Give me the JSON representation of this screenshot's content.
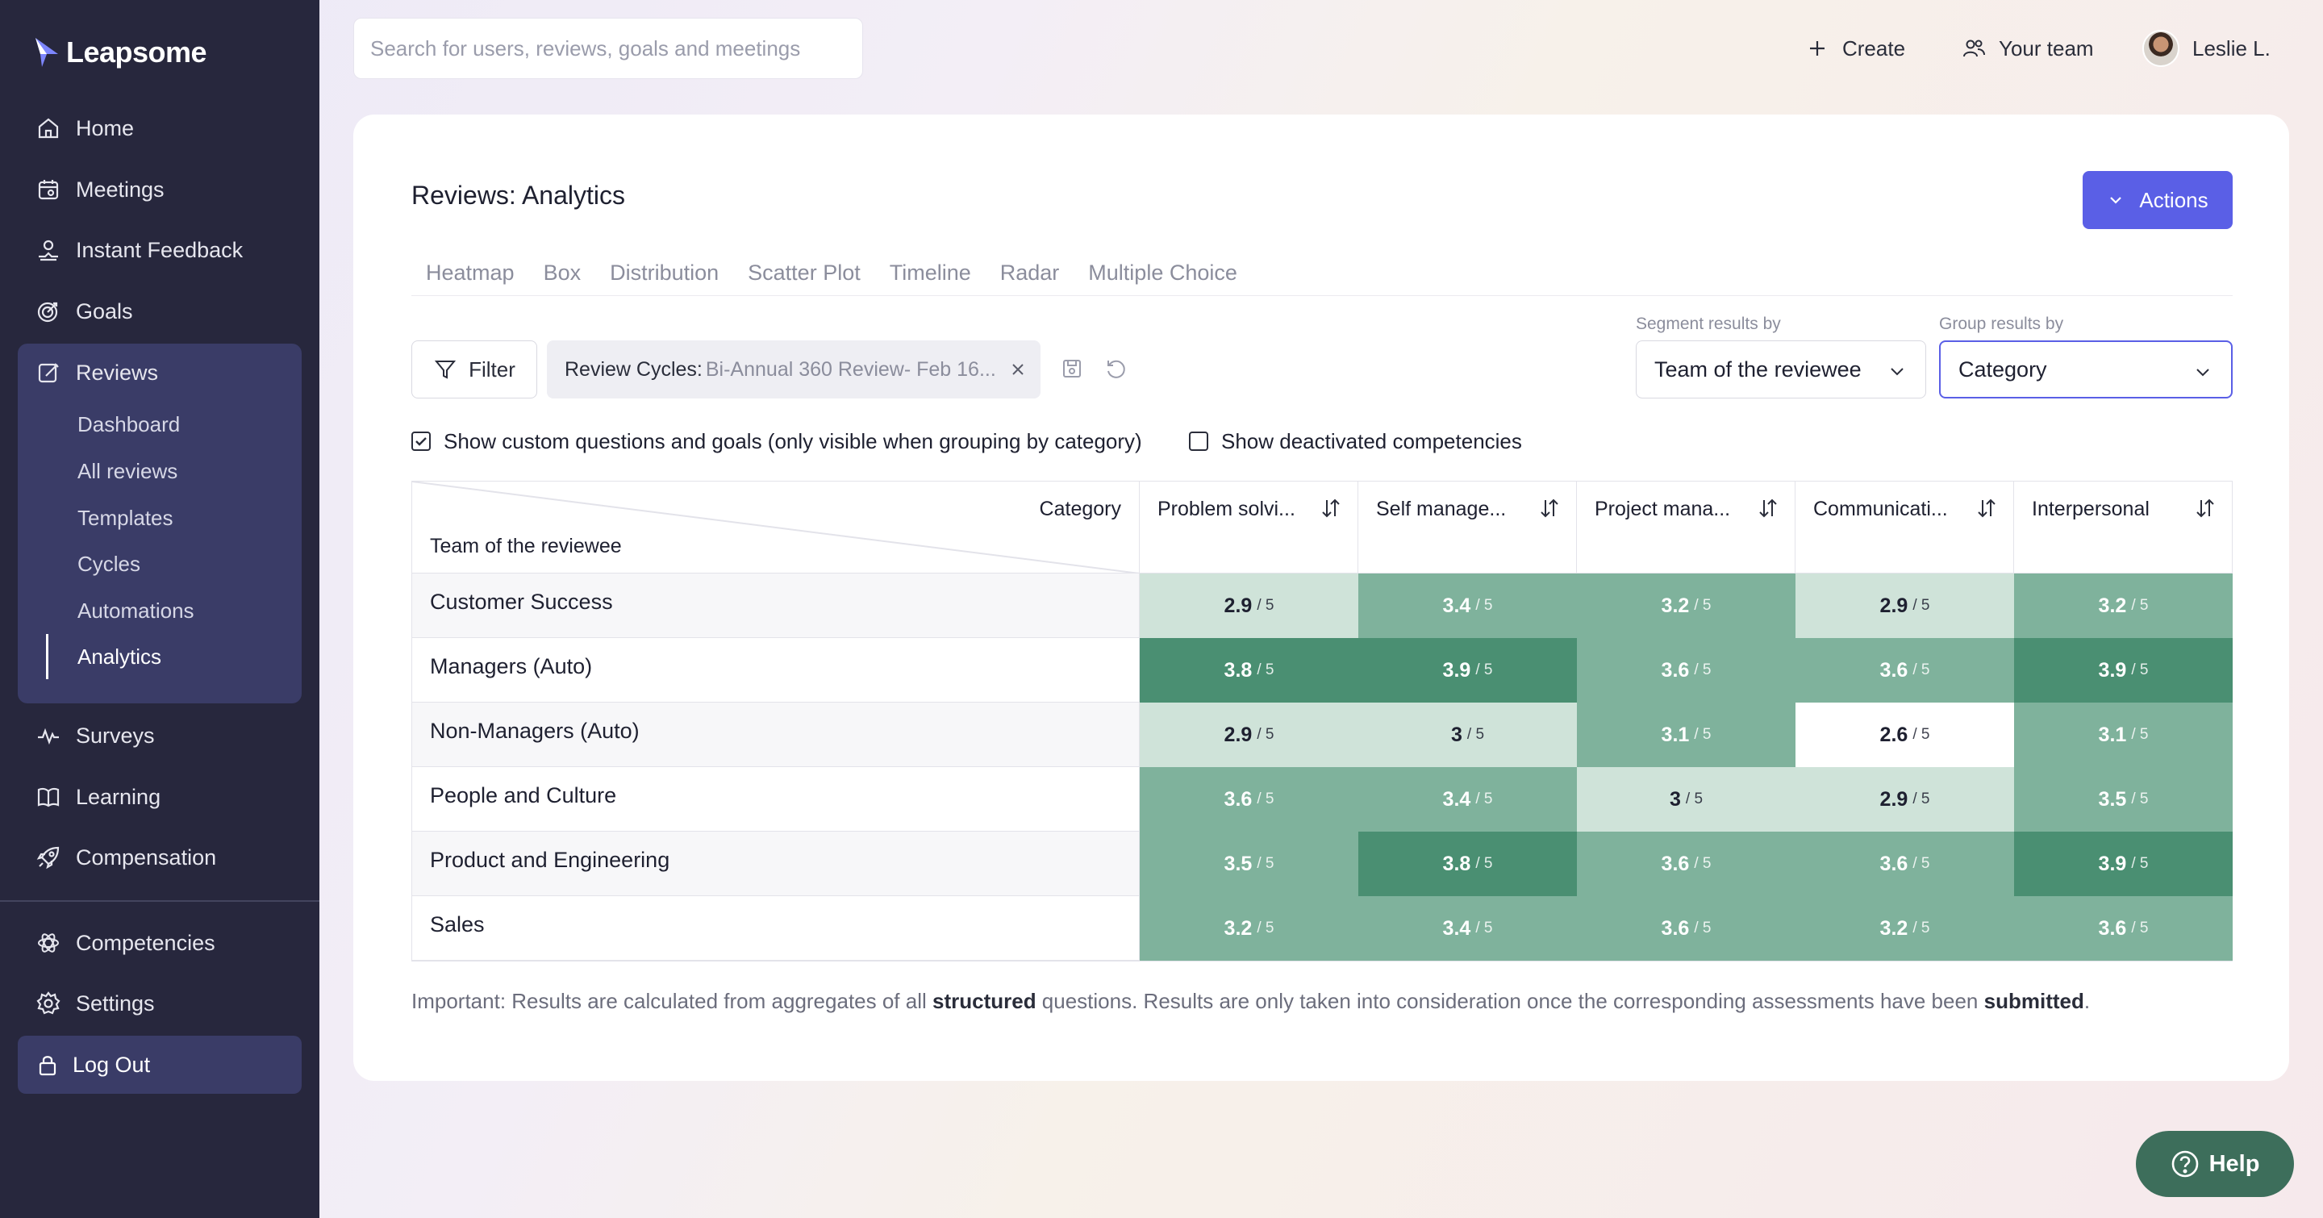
{
  "brand": {
    "name": "Leapsome"
  },
  "sidebar": {
    "items": [
      {
        "label": "Home",
        "icon": "home-icon"
      },
      {
        "label": "Meetings",
        "icon": "calendar-icon"
      },
      {
        "label": "Instant Feedback",
        "icon": "feedback-icon"
      },
      {
        "label": "Goals",
        "icon": "target-icon"
      },
      {
        "label": "Reviews",
        "icon": "edit-icon"
      },
      {
        "label": "Surveys",
        "icon": "pulse-icon"
      },
      {
        "label": "Learning",
        "icon": "book-icon"
      },
      {
        "label": "Compensation",
        "icon": "rocket-icon"
      },
      {
        "label": "Competencies",
        "icon": "atom-icon"
      },
      {
        "label": "Settings",
        "icon": "gear-icon"
      }
    ],
    "reviews_sub": [
      {
        "label": "Dashboard"
      },
      {
        "label": "All reviews"
      },
      {
        "label": "Templates"
      },
      {
        "label": "Cycles"
      },
      {
        "label": "Automations"
      },
      {
        "label": "Analytics",
        "active": true
      }
    ],
    "logout": "Log Out"
  },
  "topbar": {
    "search_placeholder": "Search for users, reviews, goals and meetings",
    "create": "Create",
    "your_team": "Your team",
    "user": "Leslie L."
  },
  "page": {
    "title": "Reviews: Analytics",
    "actions": "Actions",
    "tabs": [
      "Heatmap",
      "Box",
      "Distribution",
      "Scatter Plot",
      "Timeline",
      "Radar",
      "Multiple Choice"
    ],
    "filter": "Filter",
    "chip_key": "Review Cycles:",
    "chip_value": "Bi-Annual 360 Review- Feb 16...",
    "segment_label": "Segment results by",
    "segment_value": "Team of the reviewee",
    "group_label": "Group results by",
    "group_value": "Category",
    "check_custom": "Show custom questions and goals (only visible when grouping by category)",
    "check_custom_checked": true,
    "check_deactivated": "Show deactivated competencies",
    "check_deactivated_checked": false
  },
  "heatmap": {
    "corner_category": "Category",
    "corner_team": "Team of the reviewee",
    "columns": [
      "Problem solvi...",
      "Self manage...",
      "Project mana...",
      "Communicati...",
      "Interpersonal"
    ],
    "max_label": "/ 5",
    "rows": [
      {
        "team": "Customer Success",
        "scores": [
          "2.9",
          "3.4",
          "3.2",
          "2.9",
          "3.2"
        ]
      },
      {
        "team": "Managers (Auto)",
        "scores": [
          "3.8",
          "3.9",
          "3.6",
          "3.6",
          "3.9"
        ]
      },
      {
        "team": "Non-Managers (Auto)",
        "scores": [
          "2.9",
          "3",
          "3.1",
          "2.6",
          "3.1"
        ]
      },
      {
        "team": "People and Culture",
        "scores": [
          "3.6",
          "3.4",
          "3",
          "2.9",
          "3.5"
        ]
      },
      {
        "team": "Product and Engineering",
        "scores": [
          "3.5",
          "3.8",
          "3.6",
          "3.6",
          "3.9"
        ]
      },
      {
        "team": "Sales",
        "scores": [
          "3.2",
          "3.4",
          "3.6",
          "3.2",
          "3.6"
        ]
      }
    ],
    "colors": {
      "lightest": "#ffffff",
      "light": "#cfe3d9",
      "medium": "#7fb29c",
      "dark": "#4a8f72"
    }
  },
  "footnote": {
    "t1": "Important: Results are calculated from aggregates of all ",
    "b1": "structured",
    "t2": " questions. Results are only taken into consideration once the corresponding assessments have been ",
    "b2": "submitted",
    "t3": "."
  },
  "help": "Help",
  "colors": {
    "sidebar": "#27273d",
    "accent": "#5a5fe6",
    "help": "#3d6e5b"
  }
}
